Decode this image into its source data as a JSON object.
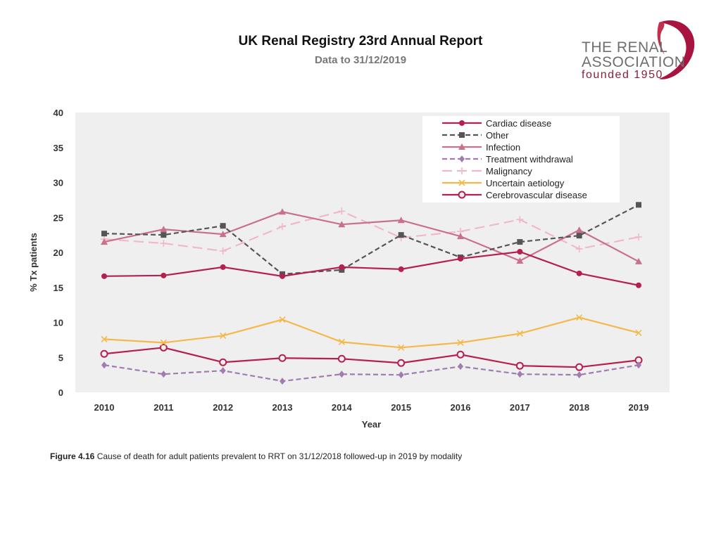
{
  "header": {
    "title": "UK Renal Registry 23rd Annual Report",
    "subtitle": "Data to 31/12/2019"
  },
  "logo": {
    "line1": "THE RENAL",
    "line2": "ASSOCIATION",
    "line3": "founded 1950"
  },
  "caption": {
    "label": "Figure 4.16",
    "text": "Cause of death for adult patients prevalent to RRT on 31/12/2018 followed-up in 2019 by modality"
  },
  "chart_data": {
    "type": "line",
    "title": "",
    "xlabel": "Year",
    "ylabel": "% Tx patients",
    "categories": [
      "2010",
      "2011",
      "2012",
      "2013",
      "2014",
      "2015",
      "2016",
      "2017",
      "2018",
      "2019"
    ],
    "ylim": [
      0,
      40
    ],
    "yticks": [
      0,
      5,
      10,
      15,
      20,
      25,
      30,
      35,
      40
    ],
    "legend_position": "top-right",
    "series": [
      {
        "name": "Cardiac disease",
        "color": "#b5204e",
        "dash": "solid",
        "marker": "circle-filled",
        "values": [
          16.6,
          16.7,
          17.9,
          16.6,
          17.9,
          17.6,
          19.1,
          20.1,
          17.0,
          15.3
        ]
      },
      {
        "name": "Other",
        "color": "#555555",
        "dash": "dashed",
        "marker": "square",
        "values": [
          22.7,
          22.5,
          23.8,
          16.9,
          17.5,
          22.5,
          19.3,
          21.5,
          22.4,
          26.8
        ]
      },
      {
        "name": "Infection",
        "color": "#c9708a",
        "dash": "solid",
        "marker": "triangle",
        "values": [
          21.5,
          23.3,
          22.6,
          25.8,
          24.0,
          24.6,
          22.3,
          18.8,
          23.2,
          18.7
        ]
      },
      {
        "name": "Treatment withdrawal",
        "color": "#a07cb0",
        "dash": "dashed",
        "marker": "diamond",
        "values": [
          3.9,
          2.6,
          3.1,
          1.6,
          2.6,
          2.5,
          3.7,
          2.6,
          2.5,
          3.9
        ]
      },
      {
        "name": "Malignancy",
        "color": "#f0b8c8",
        "dash": "long-dashed",
        "marker": "plus",
        "values": [
          21.9,
          21.3,
          20.2,
          23.7,
          25.9,
          22.1,
          23.0,
          24.7,
          20.5,
          22.2
        ]
      },
      {
        "name": "Uncertain aetiology",
        "color": "#f5b84a",
        "dash": "solid",
        "marker": "x",
        "values": [
          7.6,
          7.1,
          8.1,
          10.4,
          7.2,
          6.4,
          7.1,
          8.4,
          10.7,
          8.5
        ]
      },
      {
        "name": "Cerebrovascular disease",
        "color": "#b5204e",
        "dash": "solid",
        "marker": "circle-open",
        "values": [
          5.5,
          6.4,
          4.3,
          4.9,
          4.8,
          4.2,
          5.4,
          3.8,
          3.6,
          4.6
        ]
      }
    ]
  }
}
